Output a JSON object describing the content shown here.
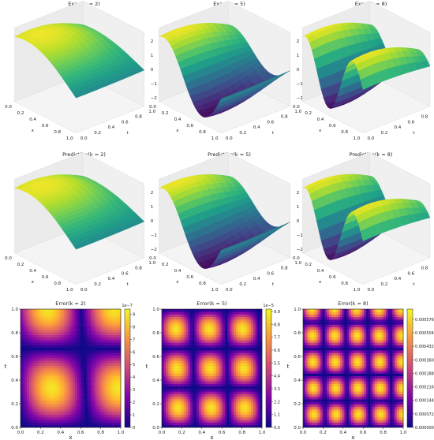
{
  "chart_data": [
    {
      "type": "surface3d",
      "title": "Exact(k = 2)",
      "k": 2,
      "x_ticks": [
        "0.0",
        "0.2",
        "0.4",
        "0.6",
        "0.8",
        "1.0"
      ],
      "t_ticks": [
        "0.0",
        "0.2",
        "0.4",
        "0.6",
        "0.8",
        "1.0"
      ],
      "z_ticks": [
        "2",
        "1",
        "0",
        "−1",
        "−2"
      ],
      "xlabel": "x",
      "tlabel": "t",
      "zlim": [
        -2.5,
        2.5
      ]
    },
    {
      "type": "surface3d",
      "title": "Exact(k = 5)",
      "k": 5,
      "x_ticks": [
        "0.0",
        "0.2",
        "0.4",
        "0.6",
        "0.8",
        "1.0"
      ],
      "t_ticks": [
        "0.0",
        "0.2",
        "0.4",
        "0.6",
        "0.8",
        "1.0"
      ],
      "z_ticks": [
        "2",
        "1",
        "0",
        "−1",
        "−2"
      ],
      "xlabel": "x",
      "tlabel": "t",
      "zlim": [
        -2.5,
        2.5
      ]
    },
    {
      "type": "surface3d",
      "title": "Exact(k = 8)",
      "k": 8,
      "x_ticks": [
        "0.0",
        "0.2",
        "0.4",
        "0.6",
        "0.8",
        "1.0"
      ],
      "t_ticks": [
        "0.0",
        "0.2",
        "0.4",
        "0.6",
        "0.8",
        "1.0"
      ],
      "z_ticks": [
        "2",
        "1",
        "0",
        "−1",
        "−2"
      ],
      "xlabel": "x",
      "tlabel": "t",
      "zlim": [
        -2.5,
        2.5
      ]
    },
    {
      "type": "surface3d",
      "title": "Prediction(k = 2)",
      "k": 2,
      "x_ticks": [
        "0.0",
        "0.2",
        "0.4",
        "0.6",
        "0.8",
        "1.0"
      ],
      "t_ticks": [
        "0.0",
        "0.2",
        "0.4",
        "0.6",
        "0.8",
        "1.0"
      ],
      "z_ticks": [
        "2",
        "1",
        "0",
        "−1",
        "−2"
      ],
      "xlabel": "x",
      "tlabel": "t",
      "zlim": [
        -2.5,
        2.5
      ]
    },
    {
      "type": "surface3d",
      "title": "Prediction(k = 5)",
      "k": 5,
      "x_ticks": [
        "0.0",
        "0.2",
        "0.4",
        "0.6",
        "0.8",
        "1.0"
      ],
      "t_ticks": [
        "0.0",
        "0.2",
        "0.4",
        "0.6",
        "0.8",
        "1.0"
      ],
      "z_ticks": [
        "2",
        "1",
        "0",
        "−1",
        "−2"
      ],
      "xlabel": "x",
      "tlabel": "t",
      "zlim": [
        -2.5,
        2.5
      ]
    },
    {
      "type": "surface3d",
      "title": "Prediction(k = 8)",
      "k": 8,
      "x_ticks": [
        "0.0",
        "0.2",
        "0.4",
        "0.6",
        "0.8",
        "1.0"
      ],
      "t_ticks": [
        "0.0",
        "0.2",
        "0.4",
        "0.6",
        "0.8",
        "1.0"
      ],
      "z_ticks": [
        "2",
        "1",
        "0",
        "−1",
        "−2"
      ],
      "xlabel": "x",
      "tlabel": "t",
      "zlim": [
        -2.5,
        2.5
      ]
    },
    {
      "type": "heatmap",
      "title": "Error(k = 2)",
      "k": 2,
      "xlabel": "x",
      "ylabel": "t",
      "x_ticks": [
        "0.0",
        "0.2",
        "0.4",
        "0.6",
        "0.8",
        "1.0"
      ],
      "y_ticks": [
        "0.0",
        "0.2",
        "0.4",
        "0.6",
        "0.8",
        "1.0"
      ],
      "colorbar_ticks": [
        "0",
        "1",
        "2",
        "3",
        "4",
        "5",
        "6",
        "7",
        "8",
        "9"
      ],
      "colorbar_offset": "1e−7",
      "colorbar_max": 9.4
    },
    {
      "type": "heatmap",
      "title": "Error(k = 5)",
      "k": 5,
      "xlabel": "x",
      "ylabel": "t",
      "x_ticks": [
        "0.0",
        "0.2",
        "0.4",
        "0.6",
        "0.8",
        "1.0"
      ],
      "y_ticks": [
        "0.0",
        "0.2",
        "0.4",
        "0.6",
        "0.8",
        "1.0"
      ],
      "colorbar_ticks": [
        "0.0",
        "1.1",
        "2.2",
        "3.3",
        "4.4",
        "5.5",
        "6.6",
        "7.7",
        "8.8",
        "9.9"
      ],
      "colorbar_offset": "1e−5",
      "colorbar_max": 10.1
    },
    {
      "type": "heatmap",
      "title": "Error(k = 8)",
      "k": 8,
      "xlabel": "x",
      "ylabel": "t",
      "x_ticks": [
        "0.0",
        "0.2",
        "0.4",
        "0.6",
        "0.8",
        "1.0"
      ],
      "y_ticks": [
        "0.0",
        "0.2",
        "0.4",
        "0.6",
        "0.8",
        "1.0"
      ],
      "colorbar_ticks": [
        "0.000000",
        "0.000072",
        "0.000144",
        "0.000216",
        "0.000288",
        "0.000360",
        "0.000432",
        "0.000504",
        "0.000576"
      ],
      "colorbar_offset": "",
      "colorbar_max": 0.00063
    }
  ],
  "colors": {
    "surface_cmap": "viridis",
    "error_cmap": "plasma"
  }
}
